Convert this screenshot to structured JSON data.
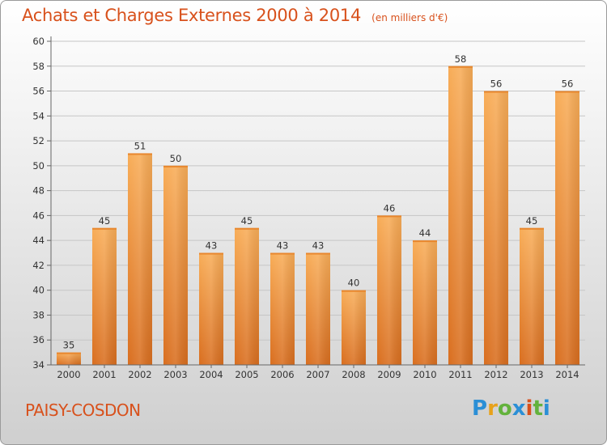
{
  "header": {
    "title": "Achats et Charges Externes 2000 à 2014",
    "unit": "(en milliers d'€)"
  },
  "footer": {
    "commune": "PAISY-COSDON",
    "brand": "Proxiti",
    "brand_colors": [
      "#2b8fd6",
      "#e8a21a",
      "#63b23c",
      "#2b8fd6",
      "#d8511c",
      "#63b23c",
      "#2b8fd6"
    ]
  },
  "colors": {
    "accent": "#d8511c",
    "bar_light": "#f6a44e",
    "bar_dark": "#e07a28",
    "grid": "#c8c8c8",
    "axis_text": "#333333"
  },
  "chart_data": {
    "type": "bar",
    "categories": [
      "2000",
      "2001",
      "2002",
      "2003",
      "2004",
      "2005",
      "2006",
      "2007",
      "2008",
      "2009",
      "2010",
      "2011",
      "2012",
      "2013",
      "2014"
    ],
    "values": [
      35,
      45,
      51,
      50,
      43,
      45,
      43,
      43,
      40,
      46,
      44,
      58,
      56,
      45,
      56
    ],
    "yticks": [
      34,
      36,
      38,
      40,
      42,
      44,
      46,
      48,
      50,
      52,
      54,
      56,
      58,
      60
    ],
    "ylim": [
      34,
      60
    ],
    "grid": true,
    "data_labels": true,
    "xlabel": "",
    "ylabel": ""
  }
}
